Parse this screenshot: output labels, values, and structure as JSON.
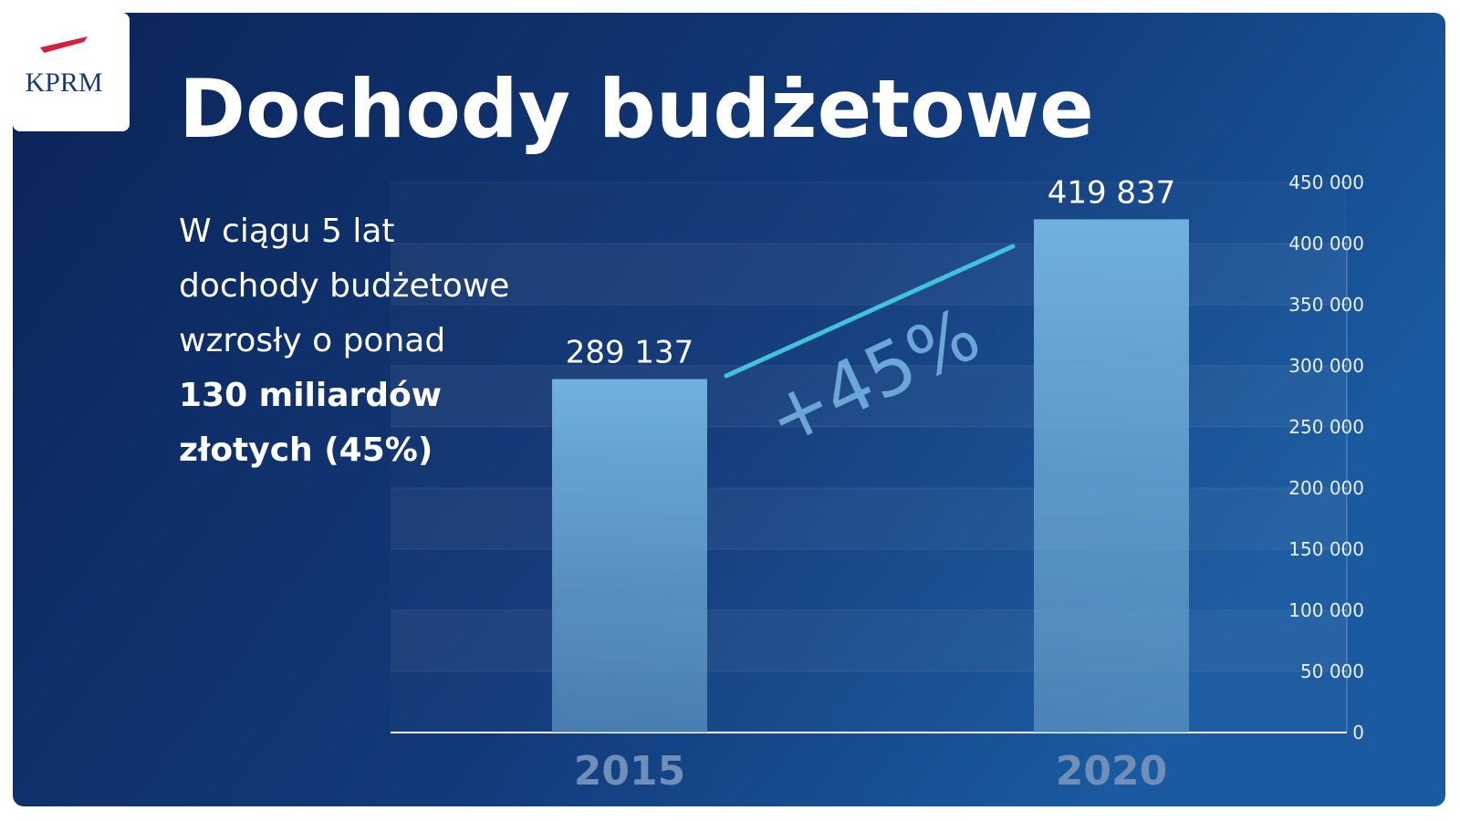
{
  "logo": "KPRM",
  "chart_data": {
    "type": "bar",
    "title": "Dochody budżetowe",
    "description": [
      "W ciągu 5 lat",
      "dochody budżetowe",
      "wzrosły o ponad"
    ],
    "description_bold": [
      "130 miliardów",
      "złotych (45%)"
    ],
    "annotation": "+45%",
    "categories": [
      "2015",
      "2020"
    ],
    "values": [
      289137,
      419837
    ],
    "value_labels": [
      "289 137",
      "419 837"
    ],
    "color": "#6fb0dc",
    "ylim": [
      0,
      450000
    ],
    "yticks": [
      0,
      {
        "value": 50000,
        "label": "50 000"
      },
      {
        "value": 100000,
        "label": "100 000"
      },
      {
        "value": 150000,
        "label": "150 000"
      },
      {
        "value": 200000,
        "label": "200 000"
      },
      {
        "value": 250000,
        "label": "250 000"
      },
      {
        "value": 300000,
        "label": "300 000"
      },
      {
        "value": 350000,
        "label": "350 000"
      },
      {
        "value": 400000,
        "label": "400 000"
      },
      {
        "value": 450000,
        "label": "450 000"
      }
    ],
    "grid": true
  }
}
